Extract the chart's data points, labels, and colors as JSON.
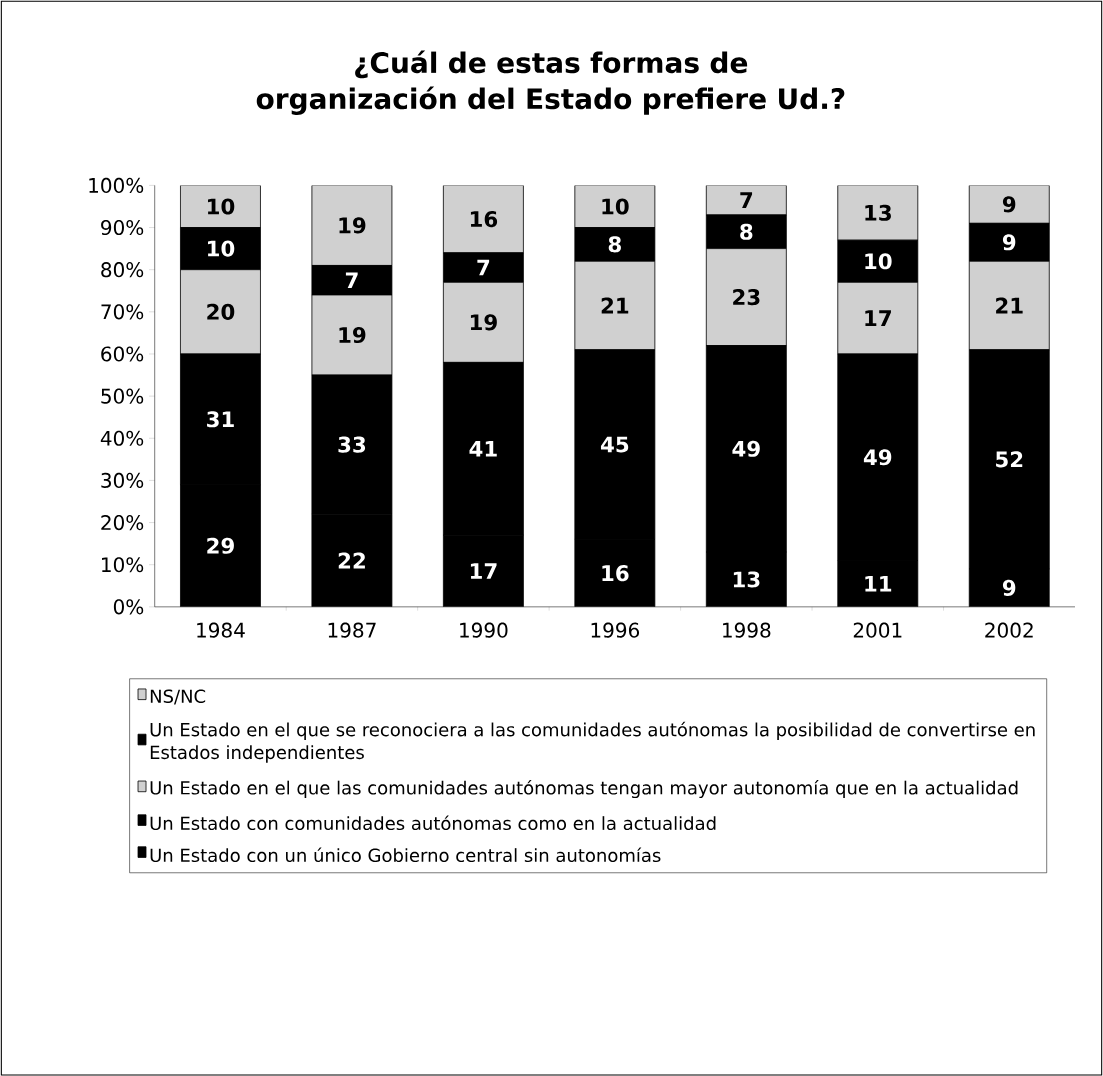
{
  "chart_data": {
    "type": "bar",
    "stacked": true,
    "title": "¿Cuál de estas formas de organización del Estado prefiere Ud.?",
    "categories": [
      "1984",
      "1987",
      "1990",
      "1996",
      "1998",
      "2001",
      "2002"
    ],
    "series": [
      {
        "name": "Un Estado con un único Gobierno central sin autonomías",
        "color": "#000000",
        "values": [
          29,
          22,
          17,
          16,
          13,
          11,
          9
        ]
      },
      {
        "name": "Un Estado con comunidades autónomas como en la actualidad",
        "color": "#000000",
        "values": [
          31,
          33,
          41,
          45,
          49,
          49,
          52
        ]
      },
      {
        "name": "Un Estado en el que las comunidades autónomas tengan mayor autonomía que en la actualidad",
        "color": "#d0d0d0",
        "values": [
          20,
          19,
          19,
          21,
          23,
          17,
          21
        ]
      },
      {
        "name": "Un Estado en el que se reconociera a las comunidades autónomas la posibilidad de convertirse en Estados independientes",
        "color": "#000000",
        "values": [
          10,
          7,
          7,
          8,
          8,
          10,
          9
        ]
      },
      {
        "name": "NS/NC",
        "color": "#d0d0d0",
        "values": [
          10,
          19,
          16,
          10,
          7,
          13,
          9
        ]
      }
    ],
    "ylim": [
      0,
      100
    ],
    "yticks": [
      {
        "value": 0,
        "label": "0%"
      },
      {
        "value": 10,
        "label": "10%"
      },
      {
        "value": 20,
        "label": "20%"
      },
      {
        "value": 30,
        "label": "30%"
      },
      {
        "value": 40,
        "label": "40%"
      },
      {
        "value": 50,
        "label": "50%"
      },
      {
        "value": 60,
        "label": "60%"
      },
      {
        "value": 70,
        "label": "70%"
      },
      {
        "value": 80,
        "label": "80%"
      },
      {
        "value": 90,
        "label": "90%"
      },
      {
        "value": 100,
        "label": "100%"
      }
    ],
    "data_labels": true,
    "legend": "bottom",
    "grid": false
  }
}
